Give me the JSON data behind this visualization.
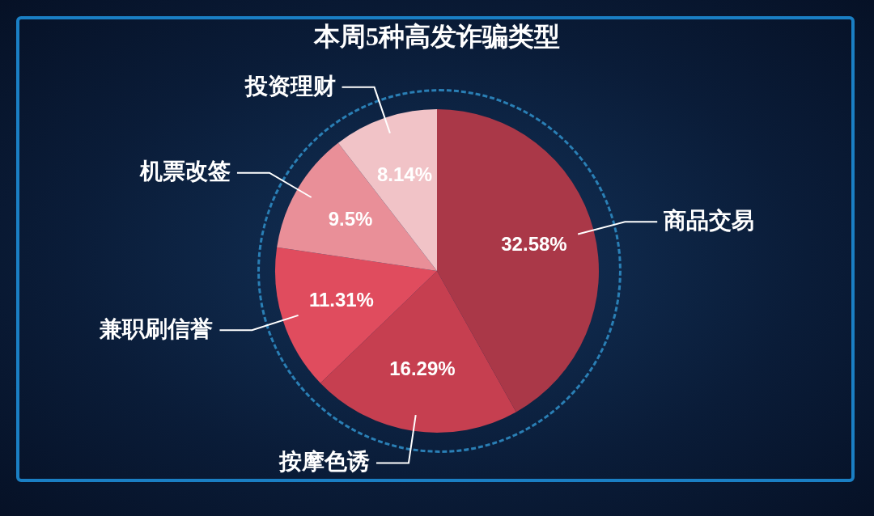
{
  "chart_data": {
    "type": "pie",
    "title": "本周5种高发诈骗类型",
    "categories": [
      "商品交易",
      "按摩色诱",
      "兼职刷信誉",
      "机票改签",
      "投资理财"
    ],
    "values": [
      32.58,
      16.29,
      11.31,
      9.5,
      8.14
    ],
    "value_labels": [
      "32.58%",
      "16.29%",
      "11.31%",
      "9.5%",
      "8.14%"
    ],
    "colors": [
      "#aa3848",
      "#c63f50",
      "#e04c5e",
      "#e98f98",
      "#f1c3c7"
    ],
    "legend": false
  }
}
